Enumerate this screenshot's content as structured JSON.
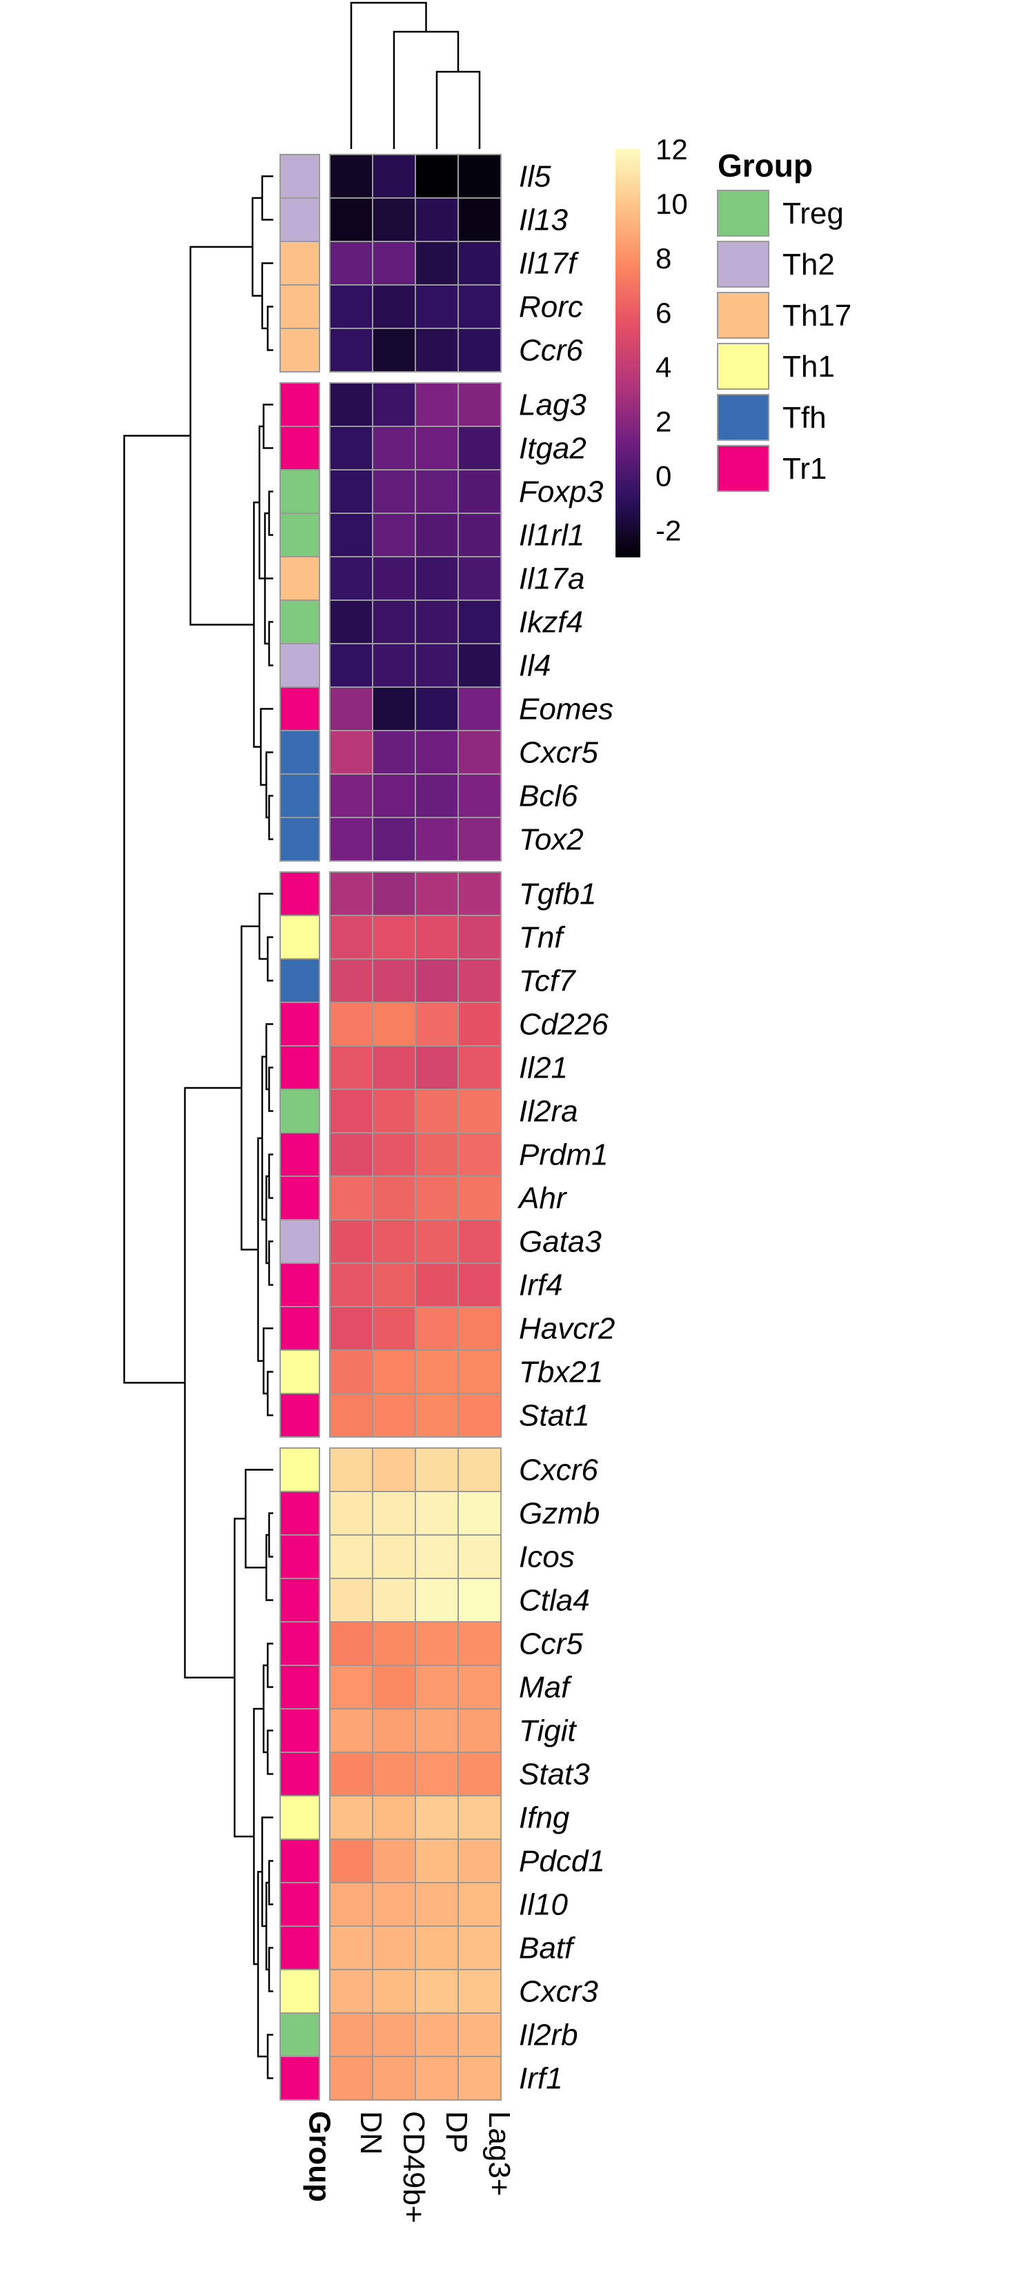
{
  "chart_data": {
    "type": "heatmap",
    "rows": [
      "Il5",
      "Il13",
      "Il17f",
      "Rorc",
      "Ccr6",
      "Lag3",
      "Itga2",
      "Foxp3",
      "Il1rl1",
      "Il17a",
      "Ikzf4",
      "Il4",
      "Eomes",
      "Cxcr5",
      "Bcl6",
      "Tox2",
      "Tgfb1",
      "Tnf",
      "Tcf7",
      "Cd226",
      "Il21",
      "Il2ra",
      "Prdm1",
      "Ahr",
      "Gata3",
      "Irf4",
      "Havcr2",
      "Tbx21",
      "Stat1",
      "Cxcr6",
      "Gzmb",
      "Icos",
      "Ctla4",
      "Ccr5",
      "Maf",
      "Tigit",
      "Stat3",
      "Ifng",
      "Pdcd1",
      "Il10",
      "Batf",
      "Cxcr3",
      "Il2rb",
      "Irf1"
    ],
    "columns": [
      "DN",
      "CD49b+",
      "DP",
      "Lag3+"
    ],
    "values": [
      [
        -2.2,
        -1.2,
        -3.0,
        -2.8
      ],
      [
        -2.4,
        -1.8,
        -1.2,
        -2.6
      ],
      [
        0.8,
        0.8,
        -1.4,
        -1.0
      ],
      [
        -0.8,
        -1.2,
        -0.8,
        -0.8
      ],
      [
        -0.8,
        -2.0,
        -1.2,
        -1.0
      ],
      [
        -1.2,
        -0.4,
        1.6,
        1.8
      ],
      [
        -0.8,
        1.0,
        1.2,
        -0.2
      ],
      [
        -0.8,
        0.8,
        0.8,
        0.4
      ],
      [
        -0.8,
        0.8,
        0.4,
        0.4
      ],
      [
        -0.6,
        -0.2,
        -0.4,
        0.0
      ],
      [
        -1.2,
        -0.4,
        -0.4,
        -0.8
      ],
      [
        -0.8,
        -0.4,
        -0.4,
        -1.2
      ],
      [
        2.2,
        -1.6,
        -1.0,
        1.4
      ],
      [
        3.6,
        1.0,
        1.2,
        2.2
      ],
      [
        1.6,
        1.2,
        1.0,
        1.6
      ],
      [
        1.4,
        0.8,
        1.6,
        2.0
      ],
      [
        3.2,
        2.6,
        3.2,
        3.2
      ],
      [
        5.0,
        5.4,
        5.2,
        4.6
      ],
      [
        4.8,
        4.6,
        4.0,
        4.6
      ],
      [
        7.2,
        7.4,
        6.6,
        5.6
      ],
      [
        5.8,
        5.2,
        4.8,
        5.8
      ],
      [
        5.4,
        6.0,
        6.8,
        7.0
      ],
      [
        5.2,
        5.8,
        6.4,
        6.6
      ],
      [
        6.6,
        6.4,
        6.8,
        7.0
      ],
      [
        5.6,
        6.0,
        6.2,
        5.8
      ],
      [
        5.8,
        6.2,
        5.6,
        5.4
      ],
      [
        5.4,
        6.0,
        7.2,
        7.4
      ],
      [
        7.0,
        7.6,
        7.8,
        7.8
      ],
      [
        7.4,
        7.6,
        7.8,
        7.6
      ],
      [
        10.6,
        10.2,
        10.8,
        10.8
      ],
      [
        11.2,
        11.4,
        11.6,
        11.8
      ],
      [
        11.4,
        11.4,
        11.6,
        11.6
      ],
      [
        11.0,
        11.4,
        11.8,
        12.0
      ],
      [
        7.4,
        7.8,
        8.0,
        8.0
      ],
      [
        8.2,
        7.8,
        8.4,
        8.4
      ],
      [
        8.8,
        8.6,
        8.8,
        8.6
      ],
      [
        7.6,
        8.0,
        8.2,
        8.0
      ],
      [
        9.8,
        9.6,
        10.2,
        10.2
      ],
      [
        7.6,
        8.8,
        9.6,
        9.4
      ],
      [
        9.0,
        9.2,
        9.4,
        9.6
      ],
      [
        9.4,
        9.4,
        9.6,
        9.8
      ],
      [
        9.4,
        9.6,
        10.0,
        10.0
      ],
      [
        8.6,
        8.8,
        9.2,
        9.4
      ],
      [
        8.4,
        8.8,
        9.2,
        9.4
      ]
    ],
    "row_groups": [
      "Th2",
      "Th2",
      "Th17",
      "Th17",
      "Th17",
      "Tr1",
      "Tr1",
      "Treg",
      "Treg",
      "Th17",
      "Treg",
      "Th2",
      "Tr1",
      "Tfh",
      "Tfh",
      "Tfh",
      "Tr1",
      "Th1",
      "Tfh",
      "Tr1",
      "Tr1",
      "Treg",
      "Tr1",
      "Tr1",
      "Th2",
      "Tr1",
      "Tr1",
      "Th1",
      "Tr1",
      "Th1",
      "Tr1",
      "Tr1",
      "Tr1",
      "Tr1",
      "Tr1",
      "Tr1",
      "Tr1",
      "Th1",
      "Tr1",
      "Tr1",
      "Tr1",
      "Th1",
      "Treg",
      "Tr1"
    ],
    "row_clusters": [
      [
        0,
        4
      ],
      [
        5,
        15
      ],
      [
        16,
        28
      ],
      [
        29,
        43
      ]
    ],
    "color_scale": {
      "min": -3,
      "max": 12,
      "ticks": [
        "12",
        "10",
        "8",
        "6",
        "4",
        "2",
        "0",
        "-2"
      ],
      "tick_values": [
        12,
        10,
        8,
        6,
        4,
        2,
        0,
        -2
      ],
      "stops": [
        "#000004",
        "#2d115f",
        "#721f81",
        "#b5367a",
        "#e55064",
        "#fb8861",
        "#fec287",
        "#fcfdbf"
      ]
    },
    "legend": {
      "title": "Group",
      "items": [
        {
          "label": "Treg",
          "color": "#7fc97f"
        },
        {
          "label": "Th2",
          "color": "#beaed4"
        },
        {
          "label": "Th17",
          "color": "#fdc086"
        },
        {
          "label": "Th1",
          "color": "#ffff99"
        },
        {
          "label": "Tfh",
          "color": "#386cb0"
        },
        {
          "label": "Tr1",
          "color": "#f0027f"
        }
      ]
    },
    "annotation_label": "Group"
  }
}
